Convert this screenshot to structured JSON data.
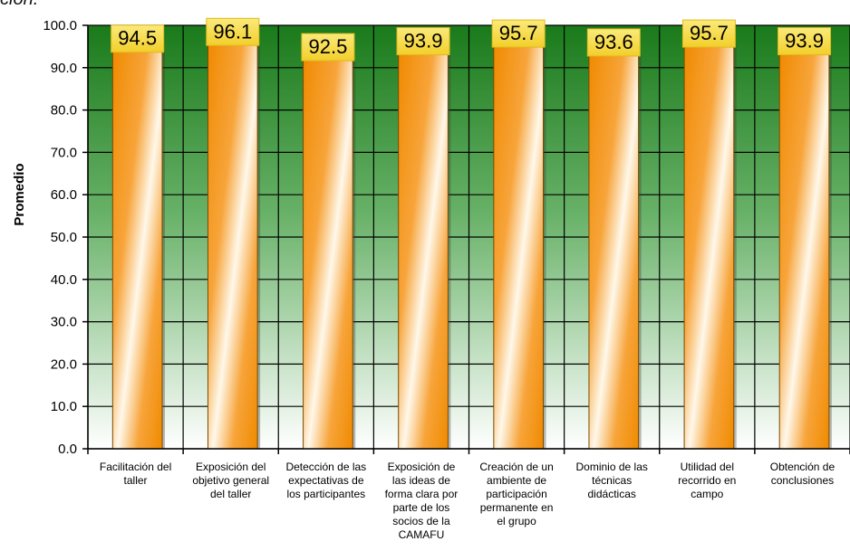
{
  "page": {
    "heading_fragment": "ción."
  },
  "chart_data": {
    "type": "bar",
    "title": "",
    "xlabel": "",
    "ylabel": "Promedio",
    "ylim": [
      0,
      100
    ],
    "yticks": [
      0,
      10,
      20,
      30,
      40,
      50,
      60,
      70,
      80,
      90,
      100
    ],
    "ytick_labels": [
      "0.0",
      "10.0",
      "20.0",
      "30.0",
      "40.0",
      "50.0",
      "60.0",
      "70.0",
      "80.0",
      "90.0",
      "100.0"
    ],
    "grid": true,
    "categories": [
      [
        "Facilitación del",
        "taller"
      ],
      [
        "Exposición del",
        "objetivo general",
        "del taller"
      ],
      [
        "Detección de las",
        "expectativas de",
        "los participantes"
      ],
      [
        "Exposición de",
        "las ideas de",
        "forma clara por",
        "parte de los",
        "socios de la",
        "CAMAFU"
      ],
      [
        "Creación de un",
        "ambiente de",
        "participación",
        "permanente en",
        "el grupo"
      ],
      [
        "Dominio de las",
        "técnicas",
        "didácticas"
      ],
      [
        "Utilidad del",
        "recorrido en",
        "campo"
      ],
      [
        "Obtención de",
        "conclusiones"
      ]
    ],
    "values": [
      94.5,
      96.1,
      92.5,
      93.9,
      95.7,
      93.6,
      95.7,
      93.9
    ],
    "value_labels": [
      "94.5",
      "96.1",
      "92.5",
      "93.9",
      "95.7",
      "93.6",
      "95.7",
      "93.9"
    ],
    "colors": {
      "bar_dark": "#f08a00",
      "bar_light": "#fff8ea",
      "bar_edge": "#7a4a00",
      "background_top": "#1a7a1a",
      "background_bottom": "#ffffff",
      "grid": "#000000",
      "label_box": "#f7e04c",
      "label_box_edge": "#e0b820"
    }
  }
}
